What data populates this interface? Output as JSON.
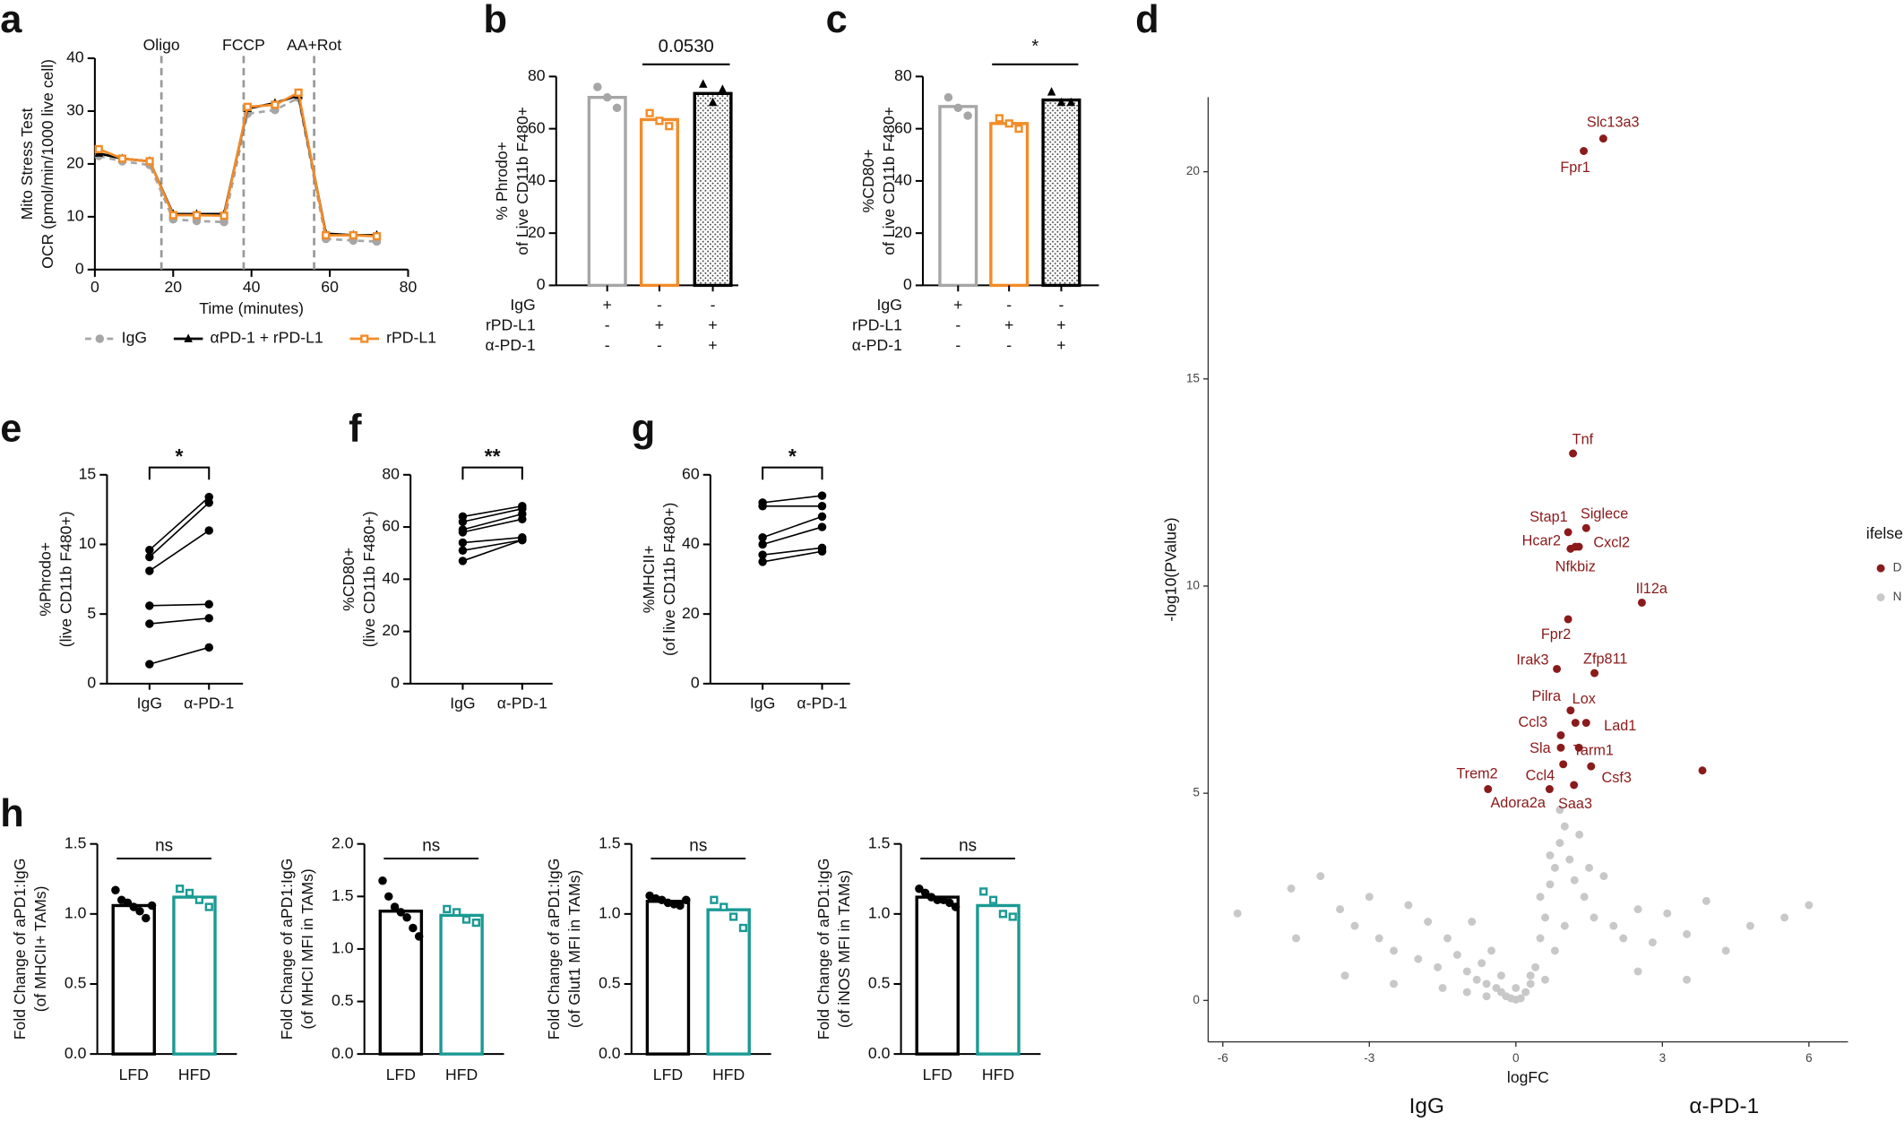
{
  "chart_data": [
    {
      "panel": "a",
      "type": "line",
      "x": [
        1,
        7,
        14,
        20,
        26,
        33,
        39,
        46,
        52,
        59,
        66,
        72
      ],
      "series": [
        {
          "name": "IgG",
          "color": "#a6a6a6",
          "dash": true,
          "marker": "circle",
          "values": [
            21.5,
            20.5,
            19.8,
            9.5,
            9.2,
            9,
            29.5,
            30.2,
            32.5,
            5.8,
            5.5,
            5.3
          ]
        },
        {
          "name": "αPD-1 + rPD-L1",
          "color": "#000000",
          "dash": false,
          "marker": "triangle",
          "values": [
            22,
            21,
            20.5,
            10.5,
            10.5,
            10.5,
            30.5,
            31.5,
            33,
            6.8,
            6.5,
            6.5
          ]
        },
        {
          "name": "rPD-L1",
          "color": "#f28c28",
          "dash": false,
          "marker": "square-open",
          "values": [
            22.8,
            21,
            20.5,
            10.3,
            10.3,
            10.2,
            30.8,
            31.2,
            33.5,
            6.5,
            6.5,
            6.3
          ]
        }
      ],
      "xlim": [
        0,
        80
      ],
      "xticks": [
        0,
        20,
        40,
        60,
        80
      ],
      "ylim": [
        0,
        40
      ],
      "yticks": [
        0,
        10,
        20,
        30,
        40
      ],
      "x_label": "Time (minutes)",
      "y_label": [
        "Mito Stress Test",
        "OCR (pmol/min/1000 live cell)"
      ],
      "events": [
        {
          "x": 17,
          "label": "Oligo"
        },
        {
          "x": 38,
          "label": "FCCP"
        },
        {
          "x": 56,
          "label": "AA+Rot"
        }
      ]
    },
    {
      "panel": "b",
      "type": "bar",
      "values": [
        72,
        63.5,
        73.5
      ],
      "colors": [
        "#a6a6a6",
        "#f28c28",
        "#000000"
      ],
      "pattern": [
        false,
        false,
        true
      ],
      "markers": [
        "circle",
        "square-open",
        "triangle"
      ],
      "points": [
        [
          76,
          72,
          68
        ],
        [
          66,
          63,
          61
        ],
        [
          77,
          70,
          75
        ]
      ],
      "ylim": [
        0,
        80
      ],
      "yticks": [
        0,
        20,
        40,
        60,
        80
      ],
      "y_label": [
        "% Phrodo+",
        "of Live CD11b F480+"
      ],
      "treatments": {
        "rows": [
          "IgG",
          "rPD-L1",
          "α-PD-1"
        ],
        "signs": [
          [
            "+",
            "-",
            "-"
          ],
          [
            "-",
            "+",
            "+"
          ],
          [
            "-",
            "-",
            "+"
          ]
        ]
      },
      "annotation": "0.0530"
    },
    {
      "panel": "c",
      "type": "bar",
      "values": [
        68.5,
        62,
        71
      ],
      "colors": [
        "#a6a6a6",
        "#f28c28",
        "#000000"
      ],
      "pattern": [
        false,
        false,
        true
      ],
      "markers": [
        "circle",
        "square-open",
        "triangle"
      ],
      "points": [
        [
          72,
          68,
          65
        ],
        [
          64,
          62,
          60
        ],
        [
          74,
          70,
          70
        ]
      ],
      "ylim": [
        0,
        80
      ],
      "yticks": [
        0,
        20,
        40,
        60,
        80
      ],
      "y_label": [
        "%CD80+",
        "of Live CD11b F480+"
      ],
      "treatments": {
        "rows": [
          "IgG",
          "rPD-L1",
          "α-PD-1"
        ],
        "signs": [
          [
            "+",
            "-",
            "-"
          ],
          [
            "-",
            "+",
            "+"
          ],
          [
            "-",
            "-",
            "+"
          ]
        ]
      },
      "annotation": "*"
    },
    {
      "panel": "d",
      "type": "scatter",
      "series": [
        {
          "name": "D",
          "color": "#8b1a1a",
          "x": [
            1.79,
            1.39,
            1.17,
            1.07,
            1.44,
            1.12,
            1.29,
            1.22,
            2.58,
            1.07,
            0.84,
            1.61,
            1.12,
            1.22,
            1.44,
            0.92,
            0.92,
            1.29,
            0.97,
            1.54,
            -0.57,
            0.69,
            1.19,
            3.82
          ],
          "values": [
            20.8,
            20.5,
            13.2,
            11.3,
            11.4,
            10.9,
            10.95,
            10.95,
            9.6,
            9.2,
            8.0,
            7.9,
            7.0,
            6.7,
            6.7,
            6.4,
            6.1,
            6.1,
            5.7,
            5.65,
            5.1,
            5.1,
            5.2,
            5.55
          ],
          "labels": [
            "Slc13a3",
            "Fpr1",
            "Tnf",
            "Stap1",
            "Siglece",
            "Hcar2",
            "Cxcl2",
            "Nfkbiz",
            "Il12a",
            "Fpr2",
            "Irak3",
            "Zfp811",
            "Pilra",
            "Lox",
            "Lad1",
            "Ccl3",
            "Sla",
            "Tarm1",
            "Ccl4",
            "Csf3",
            "Trem2",
            "Adora2a",
            "Saa3",
            null
          ]
        },
        {
          "name": "N",
          "color": "#c8c8c8",
          "x": [
            -5.7,
            -4.6,
            -4.5,
            -4.0,
            -3.6,
            -3.3,
            -3.0,
            -2.8,
            -2.5,
            -2.2,
            -2.0,
            -1.8,
            -1.6,
            -1.4,
            -1.2,
            -1.0,
            -0.9,
            -0.8,
            -0.7,
            -0.6,
            -0.5,
            -0.4,
            -0.3,
            -0.2,
            -0.1,
            0,
            0.1,
            0.2,
            0.3,
            0.4,
            0.5,
            0.6,
            0.7,
            0.8,
            0.9,
            1.0,
            1.1,
            1.2,
            1.4,
            1.6,
            1.8,
            2.0,
            2.2,
            2.5,
            2.8,
            3.1,
            3.5,
            3.9,
            4.3,
            4.8,
            5.5,
            6.0,
            -1.5,
            -1.0,
            -0.6,
            0.6,
            0.8,
            1.0,
            0.9,
            0.7,
            0.5,
            -2.5,
            -3.5,
            2.5,
            3.5,
            1.3,
            1.5,
            -0.3,
            0.3,
            0.0
          ],
          "values": [
            2.1,
            2.7,
            1.5,
            3.0,
            2.2,
            1.8,
            2.5,
            1.5,
            1.2,
            2.3,
            1.0,
            1.9,
            0.8,
            1.5,
            1.1,
            0.7,
            1.9,
            0.5,
            0.9,
            0.4,
            1.2,
            0.3,
            0.2,
            0.1,
            0.05,
            0.02,
            0.05,
            0.2,
            0.4,
            0.8,
            1.5,
            2.0,
            2.8,
            3.2,
            3.8,
            4.2,
            3.4,
            2.9,
            2.5,
            2.0,
            3.0,
            1.8,
            1.5,
            2.2,
            1.4,
            2.1,
            1.6,
            2.4,
            1.2,
            1.8,
            2.0,
            2.3,
            0.3,
            0.2,
            0.1,
            0.5,
            1.2,
            1.8,
            4.6,
            3.5,
            2.5,
            0.4,
            0.6,
            0.7,
            0.5,
            4.0,
            3.2,
            0.6,
            0.6,
            0.3
          ]
        }
      ],
      "xlim": [
        -6.3,
        6.8
      ],
      "xticks": [
        -6,
        -3,
        0,
        3,
        6
      ],
      "ylim": [
        -1,
        21.8
      ],
      "yticks": [
        0,
        5,
        10,
        15,
        20
      ],
      "x_label": "logFC",
      "y_label": "-log10(PValue)",
      "legend_title": "ifelse",
      "annotations": [
        "IgG",
        "α-PD-1"
      ]
    },
    {
      "panel": "e",
      "type": "paired",
      "categories": [
        "IgG",
        "α-PD-1"
      ],
      "pairs": [
        [
          9.6,
          13.4
        ],
        [
          9.1,
          13
        ],
        [
          8.1,
          11
        ],
        [
          5.6,
          5.7
        ],
        [
          4.3,
          4.7
        ],
        [
          1.4,
          2.6
        ]
      ],
      "ylim": [
        0,
        15
      ],
      "yticks": [
        0,
        5,
        10,
        15
      ],
      "y_label": [
        "%Phrodo+",
        "(live  CD11b  F480+)"
      ],
      "annotation": "*"
    },
    {
      "panel": "f",
      "type": "paired",
      "categories": [
        "IgG",
        "α-PD-1"
      ],
      "pairs": [
        [
          64,
          68
        ],
        [
          62,
          67
        ],
        [
          59,
          65
        ],
        [
          58,
          63
        ],
        [
          54,
          56
        ],
        [
          51,
          55
        ],
        [
          47,
          55
        ]
      ],
      "ylim": [
        0,
        80
      ],
      "yticks": [
        0,
        20,
        40,
        60,
        80
      ],
      "y_label": [
        "%CD80+",
        "(live CD11b  F480+)"
      ],
      "annotation": "**"
    },
    {
      "panel": "g",
      "type": "paired",
      "categories": [
        "IgG",
        "α-PD-1"
      ],
      "pairs": [
        [
          52,
          54
        ],
        [
          51,
          51
        ],
        [
          42,
          48
        ],
        [
          40,
          45
        ],
        [
          37,
          39
        ],
        [
          35,
          38
        ]
      ],
      "ylim": [
        0,
        60
      ],
      "yticks": [
        0,
        20,
        40,
        60
      ],
      "y_label": [
        "%MHCII+",
        "(of live CD11b  F480+)"
      ],
      "annotation": "*"
    },
    {
      "panel": "h",
      "type": "bar",
      "categories": [
        "LFD",
        "HFD"
      ],
      "values": [
        1.06,
        1.12
      ],
      "colors": [
        "#000000",
        "#1a9a94"
      ],
      "pattern": [
        false,
        false
      ],
      "markers": [
        "circle",
        "square-open"
      ],
      "points": [
        [
          1.17,
          1.1,
          1.08,
          1.05,
          1.02,
          0.97,
          1.06
        ],
        [
          1.18,
          1.15,
          1.1,
          1.05
        ]
      ],
      "ylim": [
        0,
        1.5
      ],
      "yticks": [
        {
          "value": 0,
          "label": "0.0"
        },
        0.5,
        {
          "value": 1,
          "label": "1.0"
        },
        1.5
      ],
      "y_label": [
        "Fold Change of aPD1:IgG",
        "(of MHCII+ TAMs)"
      ],
      "annotation": "ns"
    },
    {
      "type": "bar",
      "categories": [
        "LFD",
        "HFD"
      ],
      "values": [
        1.36,
        1.32
      ],
      "colors": [
        "#000000",
        "#1a9a94"
      ],
      "pattern": [
        false,
        false
      ],
      "markers": [
        "circle",
        "square-open"
      ],
      "points": [
        [
          1.65,
          1.5,
          1.4,
          1.35,
          1.3,
          1.2,
          1.12
        ],
        [
          1.38,
          1.35,
          1.28,
          1.25
        ]
      ],
      "ylim": [
        0,
        2
      ],
      "yticks": [
        {
          "value": 0,
          "label": "0.0"
        },
        0.5,
        {
          "value": 1,
          "label": "1.0"
        },
        1.5,
        {
          "value": 2,
          "label": "2.0"
        }
      ],
      "y_label": [
        "Fold Change of aPD1:IgG",
        "(of MHCI MFI in TAMs)"
      ],
      "annotation": "ns"
    },
    {
      "type": "bar",
      "categories": [
        "LFD",
        "HFD"
      ],
      "values": [
        1.09,
        1.03
      ],
      "colors": [
        "#000000",
        "#1a9a94"
      ],
      "pattern": [
        false,
        false
      ],
      "markers": [
        "circle",
        "square-open"
      ],
      "points": [
        [
          1.13,
          1.11,
          1.1,
          1.08,
          1.07,
          1.06,
          1.1
        ],
        [
          1.1,
          1.05,
          0.98,
          0.9
        ]
      ],
      "ylim": [
        0,
        1.5
      ],
      "yticks": [
        {
          "value": 0,
          "label": "0.0"
        },
        0.5,
        {
          "value": 1,
          "label": "1.0"
        },
        1.5
      ],
      "y_label": [
        "Fold Change of aPD1:IgG",
        "(of Glut1 MFI in TAMs)"
      ],
      "annotation": "ns"
    },
    {
      "type": "bar",
      "categories": [
        "LFD",
        "HFD"
      ],
      "values": [
        1.12,
        1.06
      ],
      "colors": [
        "#000000",
        "#1a9a94"
      ],
      "pattern": [
        false,
        false
      ],
      "markers": [
        "circle",
        "square-open"
      ],
      "points": [
        [
          1.18,
          1.15,
          1.12,
          1.1,
          1.1,
          1.08,
          1.05
        ],
        [
          1.16,
          1.1,
          1.0,
          0.98
        ]
      ],
      "ylim": [
        0,
        1.5
      ],
      "yticks": [
        {
          "value": 0,
          "label": "0.0"
        },
        0.5,
        {
          "value": 1,
          "label": "1.0"
        },
        1.5
      ],
      "y_label": [
        "Fold Change of aPD1:IgG",
        "(of iNOS MFI in TAMs)"
      ],
      "annotation": "ns"
    }
  ]
}
